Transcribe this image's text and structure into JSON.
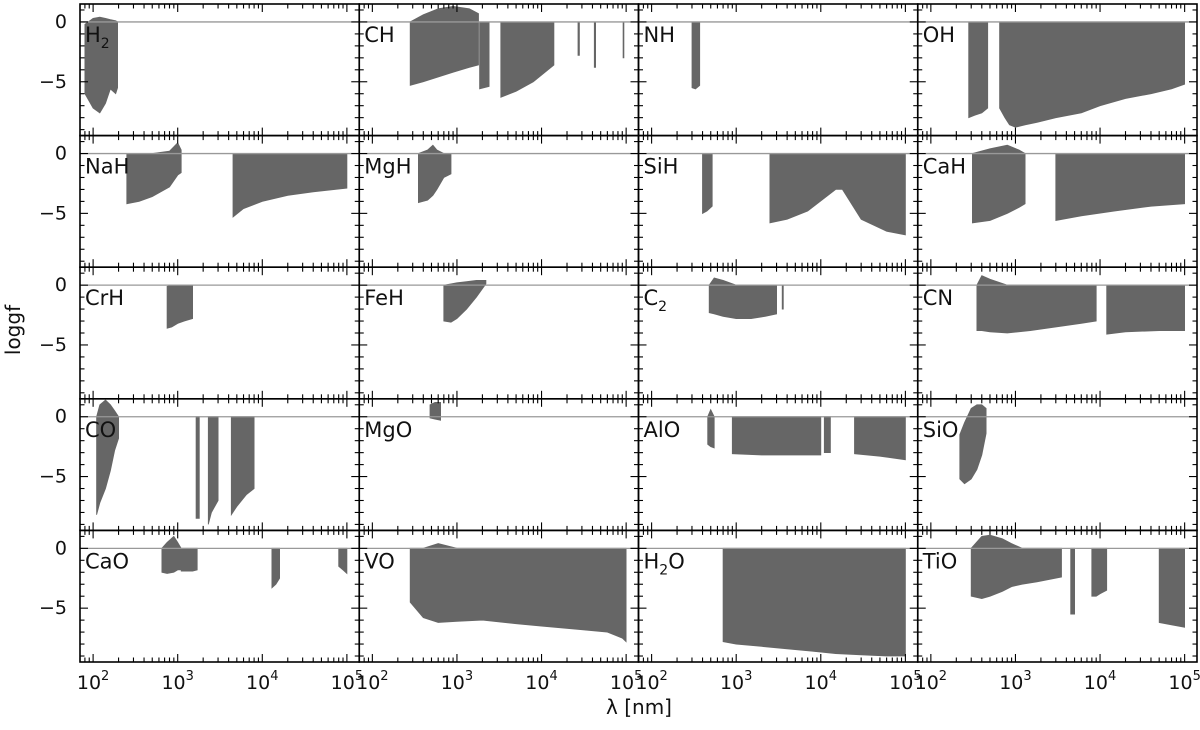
{
  "figure": {
    "xlabel": "λ [nm]",
    "ylabel": "loggf"
  },
  "chart_data": {
    "type": "area",
    "layout": {
      "rows": 5,
      "cols": 4,
      "shared_x": true,
      "shared_y": true
    },
    "xscale": "log",
    "xlim": [
      70,
      140000
    ],
    "ylim": [
      -9.5,
      1.5
    ],
    "xticks": [
      100,
      1000,
      10000,
      100000
    ],
    "xtick_labels": [
      {
        "base": "10",
        "exp": "2"
      },
      {
        "base": "10",
        "exp": "3"
      },
      {
        "base": "10",
        "exp": "4"
      },
      {
        "base": "10",
        "exp": "5"
      }
    ],
    "yticks": [
      0,
      -5
    ],
    "ytick_labels": [
      "0",
      "−5"
    ],
    "reference_line_y": 0,
    "fill_color": "#666666",
    "reference_line_color": "#999999",
    "panels": [
      {
        "molecule": "H",
        "sub": "2",
        "segments": [
          {
            "x": [
              80,
              100,
              120,
              140,
              160,
              185,
              195
            ],
            "ymin": [
              -6,
              -7.2,
              -7.6,
              -6.8,
              -5.6,
              -6.0,
              -5.5
            ],
            "ymax": [
              -0.2,
              0.3,
              0.4,
              0.3,
              0.2,
              0.1,
              0
            ]
          }
        ]
      },
      {
        "molecule": "CH",
        "sub": "",
        "segments": [
          {
            "x": [
              280,
              400,
              600,
              900,
              1400,
              1800
            ],
            "ymin": [
              -5.3,
              -5.0,
              -4.6,
              -4.2,
              -3.8,
              -3.6
            ],
            "ymax": [
              0,
              0.6,
              1.1,
              1.3,
              1.1,
              0.7
            ]
          },
          {
            "x": [
              1850,
              2400
            ],
            "ymin": [
              -5.6,
              -5.4
            ],
            "ymax": [
              0,
              0
            ]
          },
          {
            "x": [
              3300,
              5000,
              8000,
              14000
            ],
            "ymin": [
              -6.3,
              -5.8,
              -5.0,
              -3.6
            ],
            "ymax": [
              0,
              0,
              0,
              0
            ]
          },
          {
            "x": [
              27000,
              28000
            ],
            "ymin": [
              -2.8,
              -2.8
            ],
            "ymax": [
              0,
              0
            ]
          },
          {
            "x": [
              42000,
              43500
            ],
            "ymin": [
              -3.8,
              -3.8
            ],
            "ymax": [
              0,
              0
            ]
          },
          {
            "x": [
              92000,
              94000
            ],
            "ymin": [
              -3.0,
              -3.0
            ],
            "ymax": [
              0,
              0
            ]
          }
        ]
      },
      {
        "molecule": "NH",
        "sub": "",
        "segments": [
          {
            "x": [
              300,
              330,
              370
            ],
            "ymin": [
              -5.5,
              -5.6,
              -5.3
            ],
            "ymax": [
              0,
              0,
              0
            ]
          }
        ]
      },
      {
        "molecule": "OH",
        "sub": "",
        "segments": [
          {
            "x": [
              280,
              330,
              400,
              470
            ],
            "ymin": [
              -8.0,
              -7.8,
              -7.6,
              -7.2
            ],
            "ymax": [
              0,
              0,
              0,
              0
            ]
          },
          {
            "x": [
              650,
              750,
              850,
              1000,
              1300,
              1800,
              3000,
              6000,
              10000,
              20000,
              40000,
              70000,
              100000
            ],
            "ymin": [
              -7.2,
              -8.0,
              -8.6,
              -8.8,
              -8.6,
              -8.4,
              -8.0,
              -7.6,
              -7.0,
              -6.4,
              -6.0,
              -5.6,
              -5.2
            ],
            "ymax": [
              0,
              0,
              0,
              0,
              0,
              0,
              0,
              0,
              0,
              0,
              0,
              0,
              0
            ]
          }
        ]
      },
      {
        "molecule": "NaH",
        "sub": "",
        "segments": [
          {
            "x": [
              250,
              350,
              500,
              800,
              1000,
              1100
            ],
            "ymin": [
              -4.2,
              -4.0,
              -3.6,
              -2.8,
              -1.8,
              -1.6
            ],
            "ymax": [
              0,
              0,
              0,
              0.2,
              0.9,
              0.3
            ]
          },
          {
            "x": [
              4500,
              6000,
              10000,
              20000,
              40000,
              100000
            ],
            "ymin": [
              -5.3,
              -4.6,
              -4.0,
              -3.5,
              -3.2,
              -2.9
            ],
            "ymax": [
              0,
              0,
              0,
              0,
              0,
              0
            ]
          }
        ]
      },
      {
        "molecule": "MgH",
        "sub": "",
        "segments": [
          {
            "x": [
              350,
              450,
              520,
              580,
              700,
              850
            ],
            "ymin": [
              -4.1,
              -3.9,
              -3.5,
              -3.0,
              -2.0,
              -1.7
            ],
            "ymax": [
              0,
              0.3,
              0.7,
              0.3,
              0,
              0
            ]
          }
        ]
      },
      {
        "molecule": "SiH",
        "sub": "",
        "segments": [
          {
            "x": [
              400,
              450,
              520
            ],
            "ymin": [
              -5.0,
              -4.8,
              -4.4
            ],
            "ymax": [
              0,
              0,
              0
            ]
          },
          {
            "x": [
              2500,
              4000,
              7000,
              15000,
              18000,
              30000,
              60000,
              100000
            ],
            "ymin": [
              -5.8,
              -5.5,
              -4.8,
              -3.0,
              -3.0,
              -5.5,
              -6.5,
              -6.8
            ],
            "ymax": [
              0,
              0,
              0,
              0,
              0,
              0,
              0,
              0
            ]
          }
        ]
      },
      {
        "molecule": "CaH",
        "sub": "",
        "segments": [
          {
            "x": [
              310,
              500,
              800,
              1100,
              1300
            ],
            "ymin": [
              -5.8,
              -5.6,
              -5.0,
              -4.5,
              -4.2
            ],
            "ymax": [
              0,
              0.4,
              0.7,
              0.3,
              0
            ]
          },
          {
            "x": [
              3000,
              6000,
              15000,
              40000,
              100000
            ],
            "ymin": [
              -5.6,
              -5.2,
              -4.8,
              -4.4,
              -4.2
            ],
            "ymax": [
              0,
              0,
              0,
              0,
              0
            ]
          }
        ]
      },
      {
        "molecule": "CrH",
        "sub": "",
        "segments": [
          {
            "x": [
              750,
              850,
              1000,
              1200,
              1500
            ],
            "ymin": [
              -3.6,
              -3.5,
              -3.2,
              -3.0,
              -2.8
            ],
            "ymax": [
              -0.1,
              0,
              0,
              0,
              0
            ]
          }
        ]
      },
      {
        "molecule": "FeH",
        "sub": "",
        "segments": [
          {
            "x": [
              700,
              850,
              1000,
              1300,
              1700,
              2200
            ],
            "ymin": [
              -3.0,
              -3.1,
              -2.8,
              -2.0,
              -1.0,
              0.1
            ],
            "ymax": [
              0,
              0.1,
              0.2,
              0.3,
              0.4,
              0.4
            ]
          }
        ]
      },
      {
        "molecule": "C",
        "sub": "2",
        "segments": [
          {
            "x": [
              480,
              550,
              700,
              1000,
              1500,
              2200,
              3000
            ],
            "ymin": [
              -2.3,
              -2.4,
              -2.6,
              -2.8,
              -2.8,
              -2.6,
              -2.4
            ],
            "ymax": [
              0,
              0.6,
              0.4,
              0,
              0,
              0,
              0
            ]
          },
          {
            "x": [
              3500,
              3600
            ],
            "ymin": [
              -2.0,
              -2.0
            ],
            "ymax": [
              0,
              0
            ]
          }
        ]
      },
      {
        "molecule": "CN",
        "sub": "",
        "segments": [
          {
            "x": [
              350,
              400,
              500,
              800,
              1500,
              3000,
              6000,
              9000
            ],
            "ymin": [
              -3.8,
              -3.8,
              -3.9,
              -4.0,
              -3.8,
              -3.5,
              -3.2,
              -3.0
            ],
            "ymax": [
              0,
              0.8,
              0.5,
              0,
              0,
              0,
              0,
              0
            ]
          },
          {
            "x": [
              12000,
              20000,
              50000,
              100000
            ],
            "ymin": [
              -4.1,
              -3.9,
              -3.8,
              -3.8
            ],
            "ymax": [
              0,
              0,
              0,
              0
            ]
          }
        ]
      },
      {
        "molecule": "CO",
        "sub": "",
        "segments": [
          {
            "x": [
              110,
              120,
              140,
              160,
              180,
              200
            ],
            "ymin": [
              -8.2,
              -7.2,
              -6.0,
              -4.5,
              -2.8,
              -1.8
            ],
            "ymax": [
              0,
              1.0,
              1.4,
              1.0,
              0.5,
              0
            ]
          },
          {
            "x": [
              1650,
              1800
            ],
            "ymin": [
              -8.5,
              -8.5
            ],
            "ymax": [
              0,
              0
            ]
          },
          {
            "x": [
              2300,
              2500,
              3000
            ],
            "ymin": [
              -9.0,
              -8.0,
              -7.0
            ],
            "ymax": [
              0,
              0,
              0
            ]
          },
          {
            "x": [
              4300,
              5000,
              6500,
              8000
            ],
            "ymin": [
              -8.2,
              -7.5,
              -6.5,
              -6.0
            ],
            "ymax": [
              0,
              0,
              0,
              0
            ]
          }
        ]
      },
      {
        "molecule": "MgO",
        "sub": "",
        "segments": [
          {
            "x": [
              480,
              550,
              640
            ],
            "ymin": [
              -0.1,
              -0.2,
              -0.3
            ],
            "ymax": [
              1.0,
              1.2,
              1.2
            ]
          }
        ]
      },
      {
        "molecule": "AlO",
        "sub": "",
        "segments": [
          {
            "x": [
              460,
              500,
              550
            ],
            "ymin": [
              -2.3,
              -2.5,
              -2.6
            ],
            "ymax": [
              0,
              0.6,
              0
            ]
          },
          {
            "x": [
              900,
              2000,
              5000,
              10000
            ],
            "ymin": [
              -3.1,
              -3.2,
              -3.2,
              -3.2
            ],
            "ymax": [
              0,
              0,
              0,
              0
            ]
          },
          {
            "x": [
              11000,
              13000
            ],
            "ymin": [
              -3.0,
              -3.0
            ],
            "ymax": [
              0,
              0
            ]
          },
          {
            "x": [
              25000,
              50000,
              100000
            ],
            "ymin": [
              -3.1,
              -3.3,
              -3.6
            ],
            "ymax": [
              0,
              0,
              0
            ]
          }
        ]
      },
      {
        "molecule": "SiO",
        "sub": "",
        "segments": [
          {
            "x": [
              220,
              250,
              300,
              350,
              400,
              450
            ],
            "ymin": [
              -5.2,
              -5.6,
              -5.2,
              -4.4,
              -3.2,
              -1.4
            ],
            "ymax": [
              -1.5,
              -0.5,
              0.7,
              1.0,
              1.0,
              0.7
            ]
          }
        ]
      },
      {
        "molecule": "CaO",
        "sub": "",
        "segments": [
          {
            "x": [
              650,
              750,
              900,
              1000,
              1100
            ],
            "ymin": [
              -2.0,
              -2.1,
              -2.0,
              -1.8,
              -1.8
            ],
            "ymax": [
              0,
              0.5,
              1.0,
              0.5,
              0
            ]
          },
          {
            "x": [
              1100,
              1500,
              1700
            ],
            "ymin": [
              -1.9,
              -1.9,
              -1.8
            ],
            "ymax": [
              0,
              0,
              0
            ]
          },
          {
            "x": [
              13000,
              14500,
              16000
            ],
            "ymin": [
              -3.3,
              -3.0,
              -2.5
            ],
            "ymax": [
              0,
              0,
              0
            ]
          },
          {
            "x": [
              80000,
              90000,
              100000
            ],
            "ymin": [
              -1.5,
              -1.8,
              -2.1
            ],
            "ymax": [
              0,
              0,
              0
            ]
          }
        ]
      },
      {
        "molecule": "VO",
        "sub": "",
        "segments": [
          {
            "x": [
              280,
              400,
              600,
              1000,
              2000,
              5000,
              10000,
              30000,
              60000,
              90000,
              100000
            ],
            "ymin": [
              -4.5,
              -5.8,
              -6.2,
              -6.1,
              -6.0,
              -6.3,
              -6.5,
              -6.8,
              -7.0,
              -7.5,
              -7.8
            ],
            "ymax": [
              0,
              0,
              0.4,
              0,
              0,
              0,
              0,
              0,
              0,
              0,
              0
            ]
          }
        ]
      },
      {
        "molecule": "H",
        "sub": "2O",
        "segments": [
          {
            "x": [
              700,
              1000,
              2000,
              4000,
              8000,
              15000,
              30000,
              60000,
              100000
            ],
            "ymin": [
              -7.8,
              -8.0,
              -8.2,
              -8.4,
              -8.6,
              -8.8,
              -8.9,
              -9.0,
              -9.0
            ],
            "ymax": [
              0,
              0,
              0,
              0,
              0,
              0,
              0,
              0,
              0
            ]
          }
        ]
      },
      {
        "molecule": "TiO",
        "sub": "",
        "segments": [
          {
            "x": [
              300,
              400,
              500,
              700,
              900,
              1200,
              1800,
              2500,
              3500
            ],
            "ymin": [
              -4.0,
              -4.2,
              -4.0,
              -3.6,
              -3.2,
              -3.0,
              -2.8,
              -2.6,
              -2.4
            ],
            "ymax": [
              0,
              1.0,
              1.1,
              0.8,
              0.4,
              0,
              0,
              0,
              0
            ]
          },
          {
            "x": [
              4500,
              5000
            ],
            "ymin": [
              -5.5,
              -5.5
            ],
            "ymax": [
              0,
              0
            ]
          },
          {
            "x": [
              8000,
              9000,
              10000,
              12000
            ],
            "ymin": [
              -4.0,
              -4.0,
              -3.8,
              -3.5
            ],
            "ymax": [
              0,
              0,
              0,
              0
            ]
          },
          {
            "x": [
              50000,
              70000,
              100000
            ],
            "ymin": [
              -6.2,
              -6.4,
              -6.6
            ],
            "ymax": [
              0,
              0,
              0
            ]
          }
        ]
      }
    ]
  }
}
